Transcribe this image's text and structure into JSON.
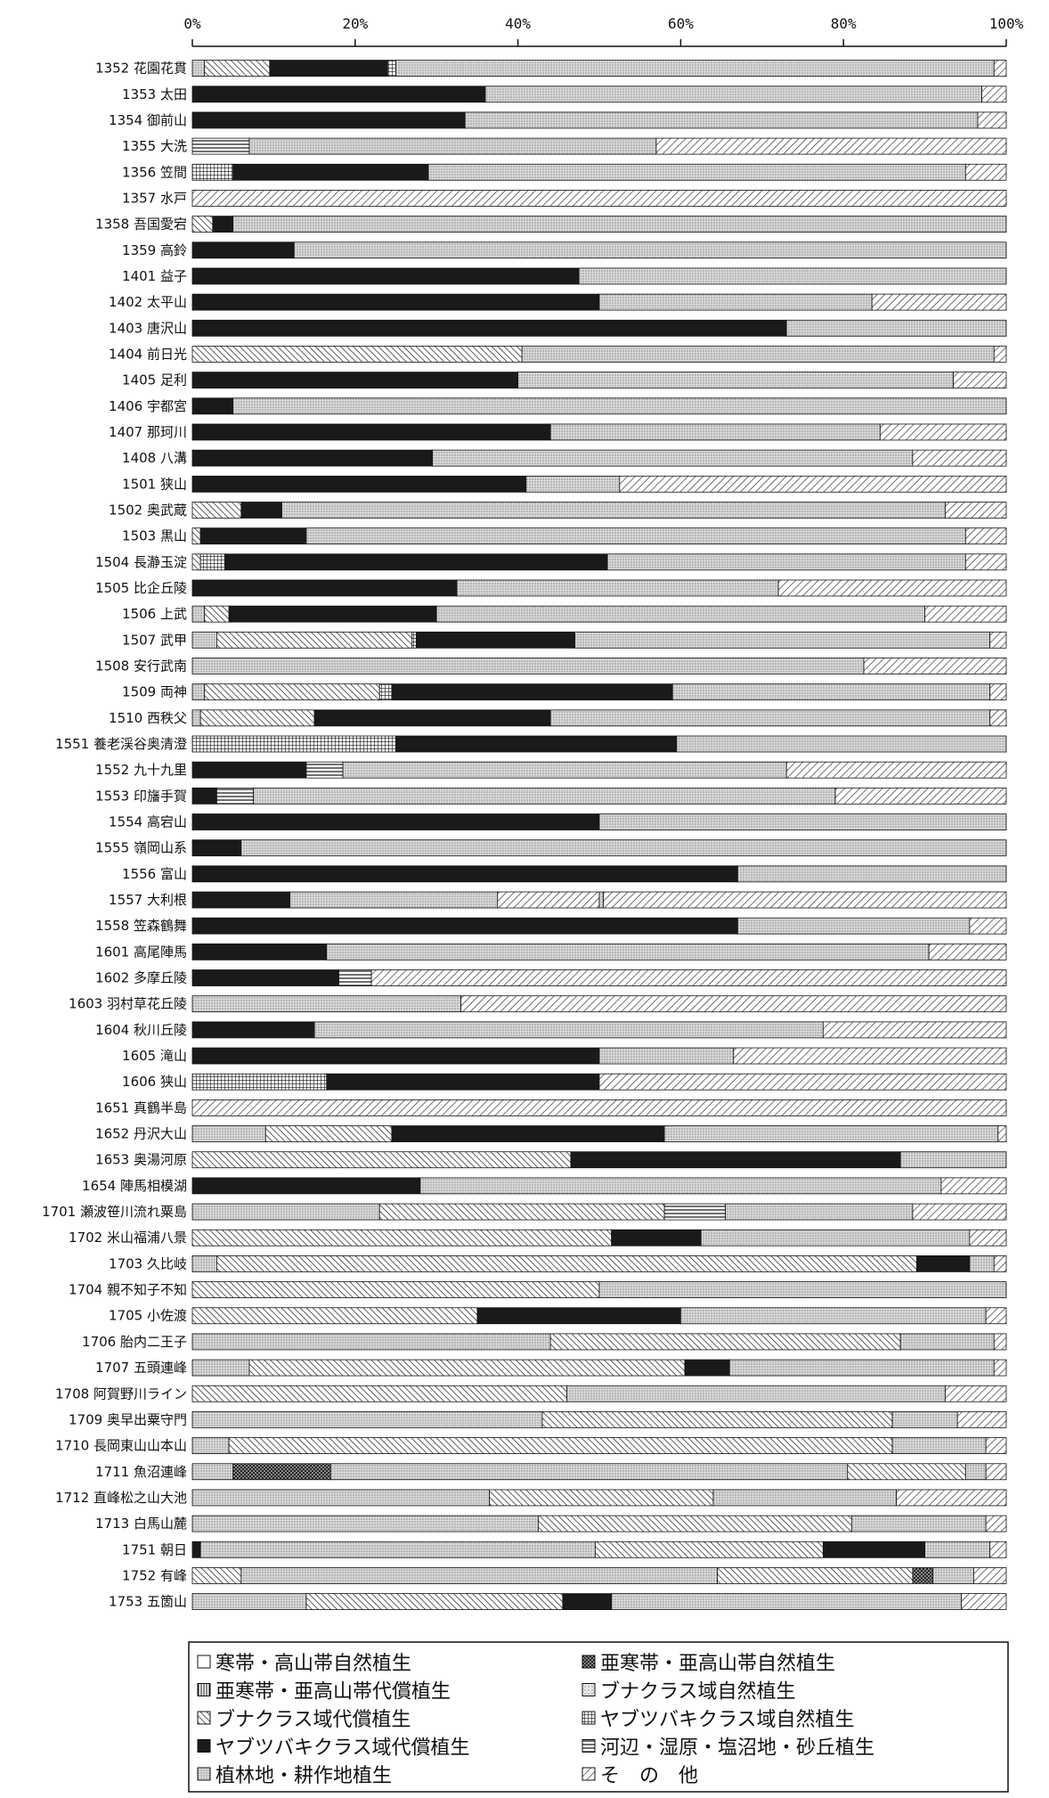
{
  "chart_data": {
    "type": "bar",
    "orientation": "horizontal",
    "stacked_percent": true,
    "xlim": [
      0,
      100
    ],
    "x_ticks": [
      "0%",
      "20%",
      "40%",
      "60%",
      "80%",
      "100%"
    ],
    "legend": [
      {
        "key": "k1",
        "label": "寒帯・高山帯自然植生",
        "color": "#ffffff",
        "pattern": "blank"
      },
      {
        "key": "k2",
        "label": "亜寒帯・亜高山帯自然植生",
        "color": "#555555",
        "pattern": "checker"
      },
      {
        "key": "k3",
        "label": "亜寒帯・亜高山帯代償植生",
        "color": "#ffffff",
        "pattern": "vlines"
      },
      {
        "key": "k4",
        "label": "ブナクラス域自然植生",
        "color": "#e8e8e8",
        "pattern": "dots"
      },
      {
        "key": "k5",
        "label": "ブナクラス域代償植生",
        "color": "#ffffff",
        "pattern": "diag"
      },
      {
        "key": "k6",
        "label": "ヤブツバキクラス域自然植生",
        "color": "#ffffff",
        "pattern": "grid"
      },
      {
        "key": "k7",
        "label": "ヤブツバキクラス域代償植生",
        "color": "#1a1a1a",
        "pattern": "solid"
      },
      {
        "key": "k8",
        "label": "河辺・湿原・塩沼地・砂丘植生",
        "color": "#ffffff",
        "pattern": "hlines"
      },
      {
        "key": "k9",
        "label": "植林地・耕作地植生",
        "color": "#dcdcdc",
        "pattern": "dense"
      },
      {
        "key": "k10",
        "label": "そ　の　他",
        "color": "#ffffff",
        "pattern": "diag2"
      }
    ],
    "categories": [
      "1352 花園花貫",
      "1353 太田",
      "1354 御前山",
      "1355 大洗",
      "1356 笠間",
      "1357 水戸",
      "1358 吾国愛宕",
      "1359 高鈴",
      "1401 益子",
      "1402 太平山",
      "1403 唐沢山",
      "1404 前日光",
      "1405 足利",
      "1406 宇都宮",
      "1407 那珂川",
      "1408 八溝",
      "1501 狭山",
      "1502 奥武蔵",
      "1503 黒山",
      "1504 長瀞玉淀",
      "1505 比企丘陵",
      "1506 上武",
      "1507 武甲",
      "1508 安行武南",
      "1509 両神",
      "1510 西秩父",
      "1551 養老渓谷奥清澄",
      "1552 九十九里",
      "1553 印旛手賀",
      "1554 高宕山",
      "1555 嶺岡山系",
      "1556 富山",
      "1557 大利根",
      "1558 笠森鶴舞",
      "1601 高尾陣馬",
      "1602 多摩丘陵",
      "1603 羽村草花丘陵",
      "1604 秋川丘陵",
      "1605 滝山",
      "1606 狭山",
      "1651 真鶴半島",
      "1652 丹沢大山",
      "1653 奥湯河原",
      "1654 陣馬相模湖",
      "1701 瀬波笹川流れ粟島",
      "1702 米山福浦八景",
      "1703 久比岐",
      "1704 親不知子不知",
      "1705 小佐渡",
      "1706 胎内二王子",
      "1707 五頭連峰",
      "1708 阿賀野川ライン",
      "1709 奥早出粟守門",
      "1710 長岡東山山本山",
      "1711 魚沼連峰",
      "1712 直峰松之山大池",
      "1713 白馬山麓",
      "1751 朝日",
      "1752 有峰",
      "1753 五箇山"
    ],
    "rows": [
      [
        [
          "k9",
          1.5
        ],
        [
          "k5",
          8
        ],
        [
          "k7",
          14.5
        ],
        [
          "k6",
          1
        ],
        [
          "k9",
          73.5
        ],
        [
          "k10",
          1.5
        ]
      ],
      [
        [
          "k7",
          36
        ],
        [
          "k9",
          61
        ],
        [
          "k10",
          3
        ]
      ],
      [
        [
          "k7",
          33.5
        ],
        [
          "k9",
          63
        ],
        [
          "k10",
          3.5
        ]
      ],
      [
        [
          "k8",
          7
        ],
        [
          "k9",
          50
        ],
        [
          "k10",
          43
        ]
      ],
      [
        [
          "k6",
          5
        ],
        [
          "k7",
          24
        ],
        [
          "k9",
          66
        ],
        [
          "k10",
          5
        ]
      ],
      [
        [
          "k10",
          100
        ]
      ],
      [
        [
          "k5",
          2.5
        ],
        [
          "k7",
          2.5
        ],
        [
          "k9",
          95
        ]
      ],
      [
        [
          "k7",
          12.5
        ],
        [
          "k9",
          87.5
        ]
      ],
      [
        [
          "k7",
          47.5
        ],
        [
          "k9",
          52.5
        ]
      ],
      [
        [
          "k7",
          50
        ],
        [
          "k9",
          33.5
        ],
        [
          "k10",
          16.5
        ]
      ],
      [
        [
          "k7",
          73
        ],
        [
          "k9",
          27
        ]
      ],
      [
        [
          "k5",
          40.5
        ],
        [
          "k9",
          58
        ],
        [
          "k10",
          1.5
        ]
      ],
      [
        [
          "k7",
          40
        ],
        [
          "k9",
          53.5
        ],
        [
          "k10",
          6.5
        ]
      ],
      [
        [
          "k7",
          5
        ],
        [
          "k9",
          95
        ]
      ],
      [
        [
          "k7",
          44
        ],
        [
          "k9",
          40.5
        ],
        [
          "k10",
          15.5
        ]
      ],
      [
        [
          "k7",
          29.5
        ],
        [
          "k9",
          59
        ],
        [
          "k10",
          11.5
        ]
      ],
      [
        [
          "k7",
          41
        ],
        [
          "k9",
          11.5
        ],
        [
          "k10",
          47.5
        ]
      ],
      [
        [
          "k5",
          6
        ],
        [
          "k7",
          5
        ],
        [
          "k9",
          81.5
        ],
        [
          "k10",
          7.5
        ]
      ],
      [
        [
          "k5",
          1
        ],
        [
          "k7",
          13
        ],
        [
          "k9",
          81
        ],
        [
          "k10",
          5
        ]
      ],
      [
        [
          "k5",
          1
        ],
        [
          "k6",
          3
        ],
        [
          "k7",
          47
        ],
        [
          "k9",
          44
        ],
        [
          "k10",
          5
        ]
      ],
      [
        [
          "k7",
          32.5
        ],
        [
          "k9",
          39.5
        ],
        [
          "k10",
          28
        ]
      ],
      [
        [
          "k9",
          1.5
        ],
        [
          "k5",
          3
        ],
        [
          "k7",
          25.5
        ],
        [
          "k9",
          60
        ],
        [
          "k10",
          10
        ]
      ],
      [
        [
          "k9",
          3
        ],
        [
          "k5",
          24
        ],
        [
          "k6",
          0.5
        ],
        [
          "k7",
          19.5
        ],
        [
          "k9",
          51
        ],
        [
          "k10",
          2
        ]
      ],
      [
        [
          "k9",
          82.5
        ],
        [
          "k10",
          17.5
        ]
      ],
      [
        [
          "k9",
          1.5
        ],
        [
          "k5",
          21.5
        ],
        [
          "k6",
          1.5
        ],
        [
          "k7",
          34.5
        ],
        [
          "k9",
          39
        ],
        [
          "k10",
          2
        ]
      ],
      [
        [
          "k9",
          1
        ],
        [
          "k5",
          14
        ],
        [
          "k7",
          29
        ],
        [
          "k9",
          54
        ],
        [
          "k10",
          2
        ]
      ],
      [
        [
          "k6",
          25
        ],
        [
          "k7",
          34.5
        ],
        [
          "k9",
          40.5
        ]
      ],
      [
        [
          "k7",
          14
        ],
        [
          "k8",
          4.5
        ],
        [
          "k9",
          54.5
        ],
        [
          "k10",
          27
        ]
      ],
      [
        [
          "k7",
          3
        ],
        [
          "k8",
          4.5
        ],
        [
          "k9",
          71.5
        ],
        [
          "k10",
          21
        ]
      ],
      [
        [
          "k7",
          50
        ],
        [
          "k9",
          50
        ]
      ],
      [
        [
          "k7",
          6
        ],
        [
          "k9",
          94
        ]
      ],
      [
        [
          "k7",
          67
        ],
        [
          "k9",
          33
        ]
      ],
      [
        [
          "k7",
          12
        ],
        [
          "k9",
          25.5
        ],
        [
          "k10",
          12.5
        ],
        [
          "k9",
          0.5
        ],
        [
          "k10",
          49.5
        ]
      ],
      [
        [
          "k7",
          67
        ],
        [
          "k9",
          28.5
        ],
        [
          "k10",
          4.5
        ]
      ],
      [
        [
          "k7",
          16.5
        ],
        [
          "k9",
          74
        ],
        [
          "k10",
          9.5
        ]
      ],
      [
        [
          "k7",
          18
        ],
        [
          "k8",
          4
        ],
        [
          "k10",
          78
        ]
      ],
      [
        [
          "k9",
          33
        ],
        [
          "k10",
          67
        ]
      ],
      [
        [
          "k7",
          15
        ],
        [
          "k9",
          62.5
        ],
        [
          "k10",
          22.5
        ]
      ],
      [
        [
          "k7",
          50
        ],
        [
          "k9",
          16.5
        ],
        [
          "k10",
          33.5
        ]
      ],
      [
        [
          "k6",
          16.5
        ],
        [
          "k7",
          33.5
        ],
        [
          "k10",
          50
        ]
      ],
      [
        [
          "k10",
          100
        ]
      ],
      [
        [
          "k9",
          9
        ],
        [
          "k5",
          15.5
        ],
        [
          "k7",
          33.5
        ],
        [
          "k9",
          41
        ],
        [
          "k10",
          1
        ]
      ],
      [
        [
          "k5",
          46.5
        ],
        [
          "k7",
          40.5
        ],
        [
          "k9",
          13
        ]
      ],
      [
        [
          "k7",
          28
        ],
        [
          "k9",
          64
        ],
        [
          "k10",
          8
        ]
      ],
      [
        [
          "k9",
          23
        ],
        [
          "k5",
          35
        ],
        [
          "k8",
          7.5
        ],
        [
          "k9",
          23
        ],
        [
          "k10",
          11.5
        ]
      ],
      [
        [
          "k5",
          51.5
        ],
        [
          "k7",
          11
        ],
        [
          "k9",
          33
        ],
        [
          "k10",
          4.5
        ]
      ],
      [
        [
          "k9",
          3
        ],
        [
          "k5",
          86
        ],
        [
          "k7",
          6.5
        ],
        [
          "k9",
          3
        ],
        [
          "k10",
          1.5
        ]
      ],
      [
        [
          "k5",
          50
        ],
        [
          "k9",
          50
        ]
      ],
      [
        [
          "k5",
          35
        ],
        [
          "k7",
          25
        ],
        [
          "k9",
          37.5
        ],
        [
          "k10",
          2.5
        ]
      ],
      [
        [
          "k9",
          44
        ],
        [
          "k5",
          43
        ],
        [
          "k9",
          11.5
        ],
        [
          "k10",
          1.5
        ]
      ],
      [
        [
          "k9",
          7
        ],
        [
          "k5",
          53.5
        ],
        [
          "k7",
          5.5
        ],
        [
          "k9",
          32.5
        ],
        [
          "k10",
          1.5
        ]
      ],
      [
        [
          "k5",
          46
        ],
        [
          "k9",
          46.5
        ],
        [
          "k10",
          7.5
        ]
      ],
      [
        [
          "k9",
          43
        ],
        [
          "k5",
          43
        ],
        [
          "k9",
          8
        ],
        [
          "k10",
          6
        ]
      ],
      [
        [
          "k9",
          4.5
        ],
        [
          "k5",
          81.5
        ],
        [
          "k9",
          11.5
        ],
        [
          "k10",
          2.5
        ]
      ],
      [
        [
          "k9",
          5
        ],
        [
          "k2",
          12
        ],
        [
          "k9",
          63.5
        ],
        [
          "k5",
          14.5
        ],
        [
          "k9",
          2.5
        ],
        [
          "k10",
          2.5
        ]
      ],
      [
        [
          "k9",
          36.5
        ],
        [
          "k5",
          27.5
        ],
        [
          "k9",
          22.5
        ],
        [
          "k10",
          13.5
        ]
      ],
      [
        [
          "k9",
          42.5
        ],
        [
          "k5",
          38.5
        ],
        [
          "k9",
          16.5
        ],
        [
          "k10",
          2.5
        ]
      ],
      [
        [
          "k7",
          1
        ],
        [
          "k9",
          48.5
        ],
        [
          "k5",
          28
        ],
        [
          "k7",
          12.5
        ],
        [
          "k9",
          8
        ],
        [
          "k10",
          2
        ]
      ],
      [
        [
          "k5",
          6
        ],
        [
          "k9",
          58.5
        ],
        [
          "k5",
          24
        ],
        [
          "k2",
          2.5
        ],
        [
          "k9",
          5
        ],
        [
          "k10",
          4
        ]
      ],
      [
        [
          "k9",
          14
        ],
        [
          "k5",
          31.5
        ],
        [
          "k7",
          6
        ],
        [
          "k9",
          43
        ],
        [
          "k10",
          5.5
        ]
      ]
    ]
  }
}
